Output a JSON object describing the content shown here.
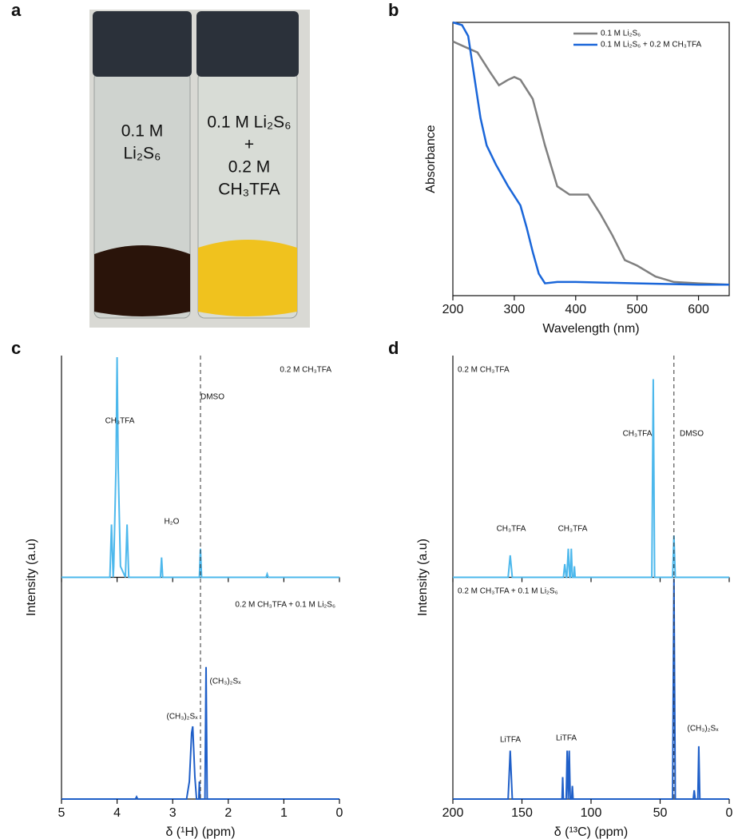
{
  "panel_labels": [
    "a",
    "b",
    "c",
    "d"
  ],
  "photo": {
    "vial_1": [
      "0.1 M",
      "Li₂S₆"
    ],
    "vial_2": [
      "0.1 M Li₂S₆",
      "+",
      "0.2 M",
      "CH₃TFA"
    ]
  },
  "chart_data": [
    {
      "type": "line",
      "xlabel": "Wavelength (nm)",
      "ylabel": "Absorbance",
      "xlim": [
        200,
        650
      ],
      "xticks": [
        200,
        300,
        400,
        500,
        600
      ],
      "ylim": [
        0,
        1
      ],
      "legend": "upper right",
      "series": [
        {
          "name": "0.1 M Li₂S₆",
          "color": "#808080",
          "x": [
            200,
            220,
            240,
            260,
            275,
            290,
            300,
            310,
            330,
            350,
            370,
            390,
            410,
            420,
            440,
            460,
            480,
            500,
            530,
            560,
            600,
            650
          ],
          "values": [
            0.93,
            0.91,
            0.89,
            0.82,
            0.77,
            0.79,
            0.8,
            0.79,
            0.72,
            0.55,
            0.4,
            0.37,
            0.37,
            0.37,
            0.3,
            0.22,
            0.13,
            0.11,
            0.07,
            0.05,
            0.045,
            0.04
          ]
        },
        {
          "name": "0.1 M Li₂S₆ + 0.2 M CH₃TFA",
          "color": "#1a66d9",
          "x": [
            200,
            215,
            225,
            235,
            245,
            255,
            270,
            290,
            310,
            320,
            330,
            340,
            350,
            370,
            400,
            500,
            600,
            650
          ],
          "values": [
            1.0,
            0.99,
            0.95,
            0.8,
            0.65,
            0.55,
            0.48,
            0.4,
            0.33,
            0.25,
            0.16,
            0.08,
            0.045,
            0.05,
            0.05,
            0.045,
            0.04,
            0.04
          ]
        }
      ]
    },
    {
      "type": "spectrum",
      "xlabel": "δ (¹H) (ppm)",
      "ylabel": "Intensity (a.u)",
      "xlim": [
        5,
        0
      ],
      "xticks": [
        5,
        4,
        3,
        2,
        1,
        0
      ],
      "ylim": [
        0,
        1
      ],
      "reference_line": 2.5,
      "subplots": [
        {
          "label": "0.2 M CH₃TFA",
          "color": "#4db8ec",
          "annotations": [
            "CH₃TFA",
            "H₂O",
            "DMSO"
          ],
          "x": [
            5,
            4.13,
            4.1,
            4.07,
            4.06,
            4.02,
            4.0,
            3.98,
            3.94,
            3.85,
            3.82,
            3.79,
            3.22,
            3.2,
            3.18,
            2.52,
            2.5,
            2.48,
            1.32,
            1.3,
            1.28,
            0
          ],
          "values": [
            0,
            0,
            0.24,
            0,
            0.05,
            0.5,
            1.0,
            0.5,
            0.05,
            0,
            0.24,
            0,
            0,
            0.09,
            0,
            0,
            0.13,
            0,
            0,
            0.015,
            0,
            0
          ]
        },
        {
          "label": "0.2 M CH₃TFA + 0.1 M Li₂S₆",
          "color": "#1f5fc8",
          "annotations": [
            "(CH₃)₂Sₓ",
            "(CH₃)₂Sₓ"
          ],
          "x": [
            5,
            3.67,
            3.65,
            3.63,
            2.75,
            2.7,
            2.66,
            2.64,
            2.6,
            2.57,
            2.53,
            2.52,
            2.51,
            2.42,
            2.4,
            2.38,
            0
          ],
          "values": [
            0,
            0,
            0.01,
            0,
            0,
            0.08,
            0.3,
            0.33,
            0.1,
            0,
            0,
            0.08,
            0,
            0,
            0.6,
            0,
            0
          ]
        }
      ]
    },
    {
      "type": "spectrum",
      "xlabel": "δ (¹³C) (ppm)",
      "ylabel": "Intensity (a.u)",
      "xlim": [
        200,
        0
      ],
      "xticks": [
        200,
        150,
        100,
        50,
        0
      ],
      "ylim": [
        0,
        1
      ],
      "reference_line": 40,
      "subplots": [
        {
          "label": "0.2 M CH₃TFA",
          "color": "#4db8ec",
          "annotations": [
            "CH₃TFA",
            "CH₃TFA",
            "CH₃TFA",
            "DMSO"
          ],
          "x": [
            200,
            160,
            158.5,
            157,
            120,
            119,
            118,
            117.5,
            116.5,
            115.5,
            115,
            114.3,
            113.5,
            112.5,
            112,
            111.5,
            56,
            55,
            54,
            41,
            40,
            39,
            0
          ],
          "values": [
            0,
            0,
            0.1,
            0,
            0,
            0.06,
            0,
            0,
            0.13,
            0,
            0,
            0.13,
            0,
            0,
            0.05,
            0,
            0,
            0.9,
            0,
            0,
            0.19,
            0,
            0
          ]
        },
        {
          "label": "0.2 M CH₃TFA + 0.1 M Li₂S₆",
          "color": "#1f5fc8",
          "annotations": [
            "LiTFA",
            "LiTFA",
            "(CH₃)₂Sₓ"
          ],
          "x": [
            200,
            160,
            158.5,
            157,
            121,
            120.5,
            120,
            118,
            117.3,
            116.5,
            115.8,
            115,
            114,
            113.5,
            113,
            41,
            40,
            39,
            26,
            25.3,
            24.6,
            22.7,
            22,
            21.3,
            0
          ],
          "values": [
            0,
            0,
            0.22,
            0,
            0,
            0.1,
            0,
            0,
            0.22,
            0,
            0.22,
            0,
            0,
            0.06,
            0,
            0,
            1.0,
            0,
            0,
            0.04,
            0,
            0,
            0.24,
            0,
            0
          ]
        }
      ]
    }
  ]
}
